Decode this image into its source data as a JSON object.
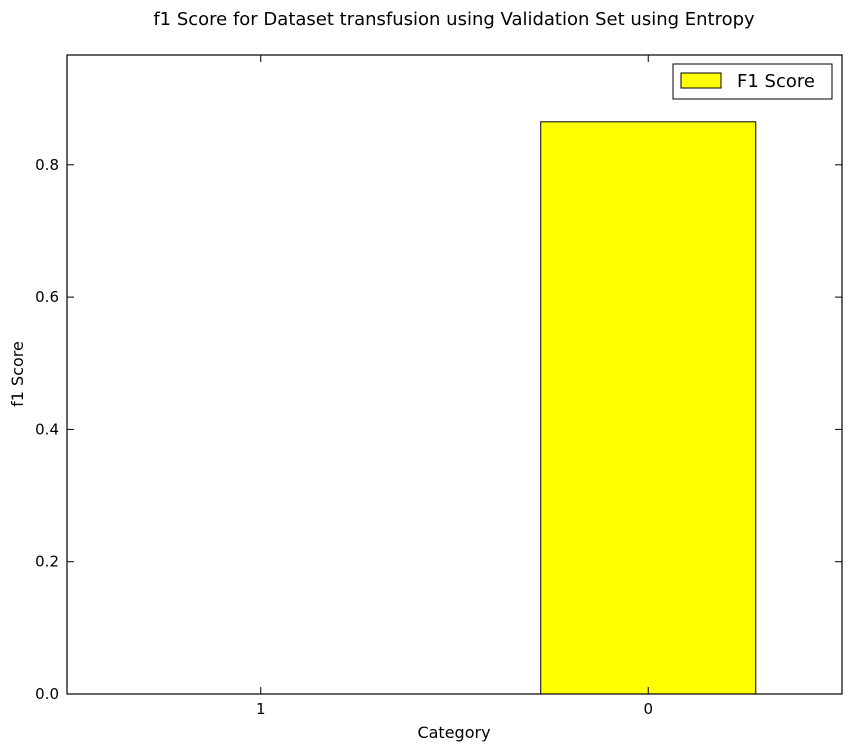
{
  "chart_data": {
    "type": "bar",
    "title": "f1 Score for Dataset transfusion using Validation Set using Entropy",
    "xlabel": "Category",
    "ylabel": "f1 Score",
    "categories": [
      "1",
      "0"
    ],
    "series": [
      {
        "name": "F1 Score",
        "values": [
          0.0,
          0.865
        ],
        "color": "#ffff00"
      }
    ],
    "ylim": [
      0,
      0.966
    ],
    "yticks": [
      0.0,
      0.2,
      0.4,
      0.6,
      0.8
    ],
    "ytick_labels": [
      "0.0",
      "0.2",
      "0.4",
      "0.6",
      "0.8"
    ],
    "grid": false,
    "legend_position": "top-right"
  }
}
